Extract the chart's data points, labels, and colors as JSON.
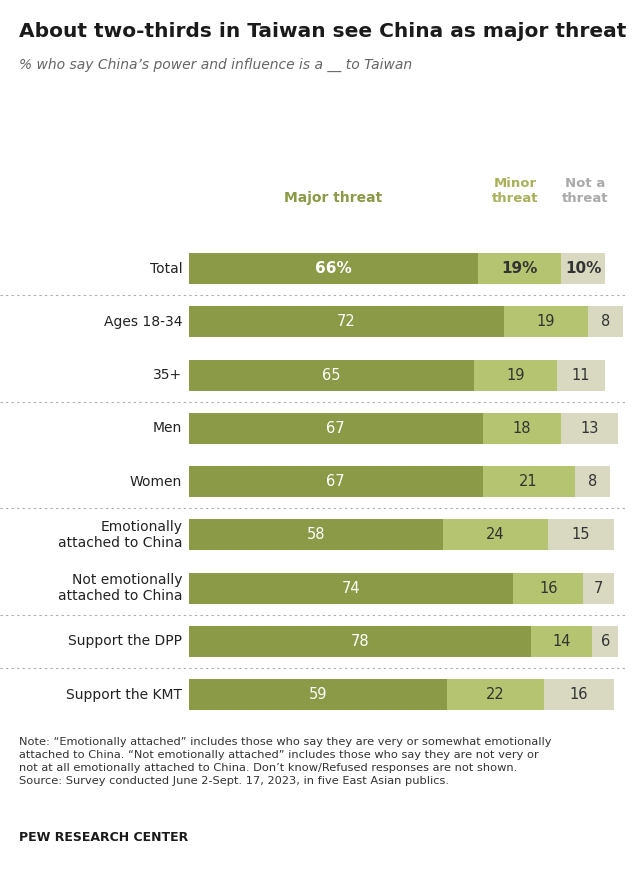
{
  "title": "About two-thirds in Taiwan see China as major threat",
  "subtitle": "% who say China’s power and influence is a __ to Taiwan",
  "categories": [
    "Total",
    "Ages 18-34",
    "35+",
    "Men",
    "Women",
    "Emotionally\nattached to China",
    "Not emotionally\nattached to China",
    "Support the DPP",
    "Support the KMT"
  ],
  "major_threat": [
    66,
    72,
    65,
    67,
    67,
    58,
    74,
    78,
    59
  ],
  "minor_threat": [
    19,
    19,
    19,
    18,
    21,
    24,
    16,
    14,
    22
  ],
  "not_a_threat": [
    10,
    8,
    11,
    13,
    8,
    15,
    7,
    6,
    16
  ],
  "color_major": "#8b9a46",
  "color_minor": "#b5c470",
  "color_not": "#d8d9c0",
  "col_header_major": "Major threat",
  "col_header_minor": "Minor\nthreat",
  "col_header_not": "Not a\nthreat",
  "note": "Note: “Emotionally attached” includes those who say they are very or somewhat emotionally\nattached to China. “Not emotionally attached” includes those who say they are not very or\nnot at all emotionally attached to China. Don’t know/Refused responses are not shown.\nSource: Survey conducted June 2-Sept. 17, 2023, in five East Asian publics.",
  "source_bold": "PEW RESEARCH CENTER",
  "dividers_after": [
    0,
    2,
    4,
    6,
    7
  ],
  "background_color": "#ffffff",
  "figwidth": 6.4,
  "figheight": 8.96
}
